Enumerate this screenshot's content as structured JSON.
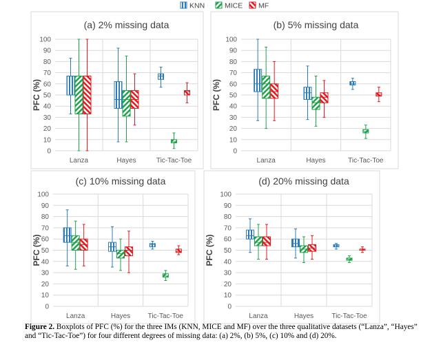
{
  "chart_data": [
    {
      "type": "boxplot",
      "title": "(a) 2% missing data",
      "ylabel": "PFC (%)",
      "ylim": [
        0,
        100
      ],
      "yticks": [
        "0",
        "10",
        "20",
        "30",
        "40",
        "50",
        "60",
        "70",
        "80",
        "90",
        "100"
      ],
      "categories": [
        "Lanza",
        "Hayes",
        "Tic-Tac-Toe"
      ],
      "series": [
        {
          "name": "KNN",
          "boxes": [
            [
              33,
              50,
              67,
              67,
              83
            ],
            [
              8,
              38,
              46,
              62,
              92
            ],
            [
              57,
              64,
              67,
              69,
              75
            ]
          ]
        },
        {
          "name": "MICE",
          "boxes": [
            [
              0,
              33,
              67,
              67,
              100
            ],
            [
              8,
              31,
              46,
              54,
              85
            ],
            [
              2,
              7,
              8,
              10,
              16
            ]
          ]
        },
        {
          "name": "MF",
          "boxes": [
            [
              0,
              33,
              67,
              67,
              100
            ],
            [
              23,
              38,
              46,
              54,
              69
            ],
            [
              43,
              50,
              53,
              54,
              61
            ]
          ]
        }
      ]
    },
    {
      "type": "boxplot",
      "title": "(b) 5% missing data",
      "ylabel": "PFC (%)",
      "ylim": [
        0,
        100
      ],
      "yticks": [
        "0",
        "10",
        "20",
        "30",
        "40",
        "50",
        "60",
        "70",
        "80",
        "90",
        "100"
      ],
      "categories": [
        "Lanza",
        "Hayes",
        "Tic-Tac-Toe"
      ],
      "series": [
        {
          "name": "KNN",
          "boxes": [
            [
              27,
              53,
              60,
              73,
              100
            ],
            [
              28,
              46,
              52,
              57,
              76
            ],
            [
              55,
              59,
              60,
              62,
              65
            ]
          ]
        },
        {
          "name": "MICE",
          "boxes": [
            [
              20,
              47,
              60,
              67,
              93
            ],
            [
              22,
              37,
              43,
              48,
              67
            ],
            [
              11,
              16,
              17,
              19,
              23
            ]
          ]
        },
        {
          "name": "MF",
          "boxes": [
            [
              27,
              47,
              53,
              60,
              80
            ],
            [
              30,
              43,
              48,
              52,
              63
            ],
            [
              44,
              49,
              50,
              52,
              57
            ]
          ]
        }
      ]
    },
    {
      "type": "boxplot",
      "title": "(c) 10% missing data",
      "ylabel": "PFC (%)",
      "ylim": [
        0,
        100
      ],
      "yticks": [
        "0",
        "10",
        "20",
        "30",
        "40",
        "50",
        "60",
        "70",
        "80",
        "90",
        "100"
      ],
      "categories": [
        "Lanza",
        "Hayes",
        "Tic-Tac-Toe"
      ],
      "series": [
        {
          "name": "KNN",
          "boxes": [
            [
              36,
              57,
              63,
              70,
              86
            ],
            [
              35,
              49,
              53,
              57,
              71
            ],
            [
              51,
              53,
              55,
              56,
              58
            ]
          ]
        },
        {
          "name": "MICE",
          "boxes": [
            [
              33,
              50,
              57,
              63,
              76
            ],
            [
              32,
              43,
              47,
              50,
              60
            ],
            [
              23,
              26,
              27,
              29,
              32
            ]
          ]
        },
        {
          "name": "MF",
          "boxes": [
            [
              36,
              50,
              55,
              60,
              73
            ],
            [
              30,
              45,
              50,
              53,
              67
            ],
            [
              46,
              48,
              49,
              51,
              54
            ]
          ]
        }
      ]
    },
    {
      "type": "boxplot",
      "title": "(d) 20% missing data",
      "ylabel": "PFC (%)",
      "ylim": [
        0,
        100
      ],
      "yticks": [
        "0",
        "10",
        "20",
        "30",
        "40",
        "50",
        "60",
        "70",
        "80",
        "90",
        "100"
      ],
      "categories": [
        "Lanza",
        "Hayes",
        "Tic-Tac-Toe"
      ],
      "series": [
        {
          "name": "KNN",
          "boxes": [
            [
              48,
              60,
              63,
              68,
              78
            ],
            [
              43,
              53,
              56,
              60,
              69
            ],
            [
              51,
              53,
              54,
              55,
              56
            ]
          ]
        },
        {
          "name": "MICE",
          "boxes": [
            [
              42,
              54,
              57,
              62,
              73
            ],
            [
              39,
              48,
              51,
              54,
              62
            ],
            [
              39,
              41,
              42,
              43,
              45
            ]
          ]
        },
        {
          "name": "MF",
          "boxes": [
            [
              42,
              54,
              57,
              62,
              73
            ],
            [
              42,
              49,
              52,
              55,
              63
            ],
            [
              48,
              50,
              51,
              51,
              53
            ]
          ]
        }
      ]
    }
  ],
  "legend": [
    {
      "name": "KNN",
      "color": "#2b7bba"
    },
    {
      "name": "MICE",
      "color": "#1fa34a"
    },
    {
      "name": "MF",
      "color": "#e8161d"
    }
  ],
  "caption": {
    "label": "Figure 2.",
    "text": " Boxplots of PFC (%) for the three IMs (KNN, MICE and MF) over the three qualitative datasets (“Lanza”, “Hayes” and “Tic-Tac-Toe”) for four different degrees of missing data: (a) 2%, (b) 5%, (c) 10% and (d) 20%."
  }
}
